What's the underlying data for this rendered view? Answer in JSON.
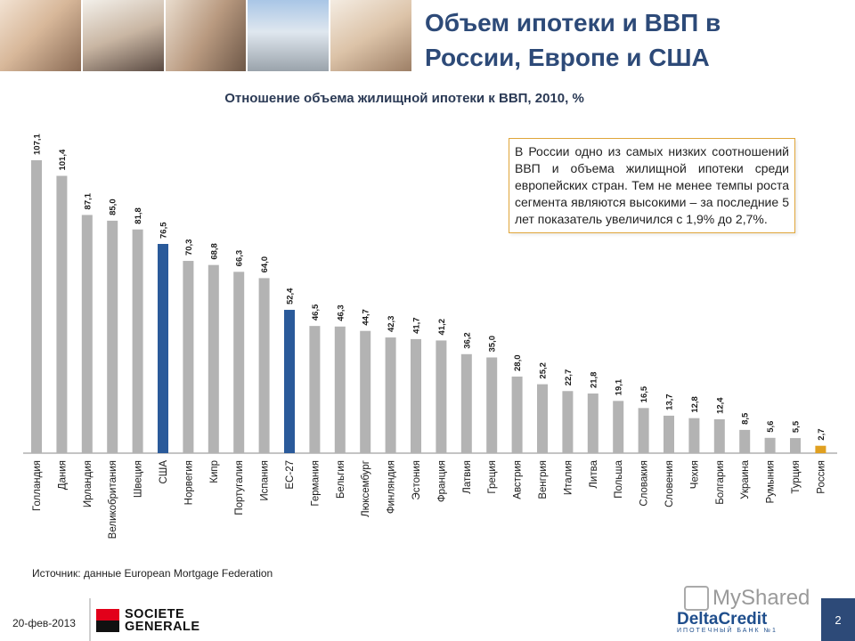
{
  "header": {
    "title_line1": "Объем ипотеки и ВВП в",
    "title_line2": "России, Европе и США"
  },
  "chart_data": {
    "type": "bar",
    "subtitle": "Отношение объема жилищной ипотеки к ВВП, 2010, %",
    "categories": [
      "Голландия",
      "Дания",
      "Ирландия",
      "Великобритания",
      "Швеция",
      "США",
      "Норвегия",
      "Кипр",
      "Португалия",
      "Испания",
      "ЕС-27",
      "Германия",
      "Бельгия",
      "Люксембург",
      "Финляндия",
      "Эстония",
      "Франция",
      "Латвия",
      "Греция",
      "Австрия",
      "Венгрия",
      "Италия",
      "Литва",
      "Польша",
      "Словакия",
      "Словения",
      "Чехия",
      "Болгария",
      "Украина",
      "Румыния",
      "Турция",
      "Россия"
    ],
    "values": [
      107.1,
      101.4,
      87.1,
      85.0,
      81.8,
      76.5,
      70.3,
      68.8,
      66.3,
      64.0,
      52.4,
      46.5,
      46.3,
      44.7,
      42.3,
      41.7,
      41.2,
      36.2,
      35.0,
      28.0,
      25.2,
      22.7,
      21.8,
      19.1,
      16.5,
      13.7,
      12.8,
      12.4,
      8.5,
      5.6,
      5.5,
      2.7
    ],
    "value_labels": [
      "107,1",
      "101,4",
      "87,1",
      "85,0",
      "81,8",
      "76,5",
      "70,3",
      "68,8",
      "66,3",
      "64,0",
      "52,4",
      "46,5",
      "46,3",
      "44,7",
      "42,3",
      "41,7",
      "41,2",
      "36,2",
      "35,0",
      "28,0",
      "25,2",
      "22,7",
      "21,8",
      "19,1",
      "16,5",
      "13,7",
      "12,8",
      "12,4",
      "8,5",
      "5,6",
      "5,5",
      "2,7"
    ],
    "highlight": {
      "США": "#2a5a9a",
      "ЕС-27": "#2a5a9a",
      "Россия": "#e0a020"
    },
    "bar_color": "#b3b3b3",
    "ylim": [
      0,
      110
    ],
    "grid": false,
    "legend": "none"
  },
  "note": {
    "text": "В России одно из самых низких соотношений ВВП и объема жилищной ипотеки среди европейских стран. Тем не менее темпы роста сегмента являются высокими – за последние 5 лет показатель увеличился с 1,9% до 2,7%."
  },
  "source": "Источник: данные European Mortgage Federation",
  "footer": {
    "date": "20-фев-2013",
    "brand_line1": "SOCIETE",
    "brand_line2": "GENERALE",
    "watermark": "MyShared",
    "deltacredit": "DeltaCredit",
    "deltacredit_tag": "ИПОТЕЧНЫЙ БАНК №1",
    "page": "2"
  },
  "colors": {
    "title": "#2d4a78",
    "accent_border": "#e0a63a",
    "page_badge": "#2d4a78"
  }
}
